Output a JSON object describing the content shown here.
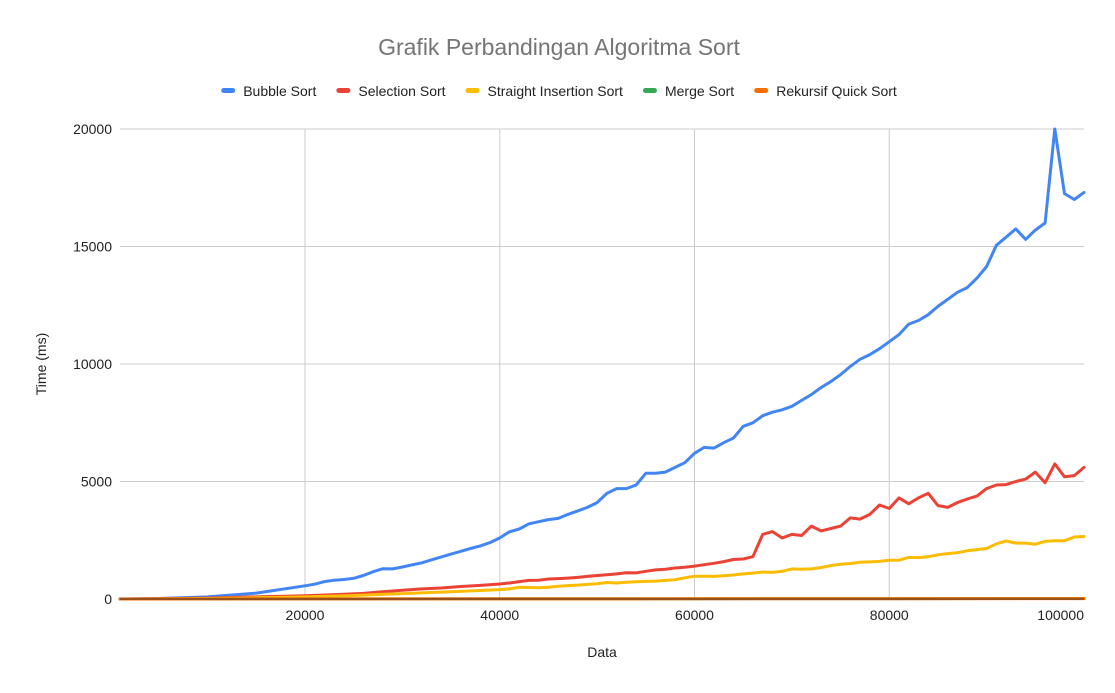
{
  "chart_data": {
    "type": "line",
    "title": "Grafik Perbandingan Algoritma Sort",
    "xlabel": "Data",
    "ylabel": "Time (ms)",
    "xlim": [
      1000,
      100000
    ],
    "ylim": [
      0,
      20000
    ],
    "xticks": [
      20000,
      40000,
      60000,
      80000,
      100000
    ],
    "yticks": [
      0,
      5000,
      10000,
      15000,
      20000
    ],
    "grid": true,
    "legend_position": "top",
    "series": [
      {
        "name": "Bubble Sort",
        "color": "#4285f4",
        "points": [
          [
            1000,
            5
          ],
          [
            5000,
            20
          ],
          [
            10000,
            90
          ],
          [
            15000,
            250
          ],
          [
            20000,
            560
          ],
          [
            21000,
            630
          ],
          [
            22000,
            740
          ],
          [
            23000,
            800
          ],
          [
            24000,
            830
          ],
          [
            25000,
            880
          ],
          [
            26000,
            1000
          ],
          [
            27000,
            1160
          ],
          [
            28000,
            1290
          ],
          [
            29000,
            1280
          ],
          [
            30000,
            1360
          ],
          [
            31000,
            1450
          ],
          [
            32000,
            1540
          ],
          [
            33000,
            1670
          ],
          [
            34000,
            1790
          ],
          [
            35000,
            1910
          ],
          [
            36000,
            2030
          ],
          [
            37000,
            2150
          ],
          [
            38000,
            2260
          ],
          [
            39000,
            2400
          ],
          [
            40000,
            2600
          ],
          [
            41000,
            2860
          ],
          [
            42000,
            2980
          ],
          [
            43000,
            3200
          ],
          [
            44000,
            3290
          ],
          [
            45000,
            3380
          ],
          [
            46000,
            3430
          ],
          [
            47000,
            3600
          ],
          [
            48000,
            3750
          ],
          [
            49000,
            3900
          ],
          [
            50000,
            4100
          ],
          [
            51000,
            4500
          ],
          [
            52000,
            4700
          ],
          [
            53000,
            4700
          ],
          [
            54000,
            4850
          ],
          [
            55000,
            5350
          ],
          [
            56000,
            5350
          ],
          [
            57000,
            5400
          ],
          [
            58000,
            5600
          ],
          [
            59000,
            5800
          ],
          [
            60000,
            6200
          ],
          [
            61000,
            6450
          ],
          [
            62000,
            6420
          ],
          [
            63000,
            6650
          ],
          [
            64000,
            6850
          ],
          [
            65000,
            7350
          ],
          [
            66000,
            7500
          ],
          [
            67000,
            7800
          ],
          [
            68000,
            7950
          ],
          [
            69000,
            8050
          ],
          [
            70000,
            8200
          ],
          [
            71000,
            8450
          ],
          [
            72000,
            8700
          ],
          [
            73000,
            9000
          ],
          [
            74000,
            9250
          ],
          [
            75000,
            9550
          ],
          [
            76000,
            9900
          ],
          [
            77000,
            10200
          ],
          [
            78000,
            10400
          ],
          [
            79000,
            10650
          ],
          [
            80000,
            10950
          ],
          [
            81000,
            11250
          ],
          [
            82000,
            11700
          ],
          [
            83000,
            11850
          ],
          [
            84000,
            12100
          ],
          [
            85000,
            12450
          ],
          [
            86000,
            12750
          ],
          [
            87000,
            13050
          ],
          [
            88000,
            13250
          ],
          [
            89000,
            13650
          ],
          [
            90000,
            14150
          ],
          [
            91000,
            15050
          ],
          [
            92000,
            15400
          ],
          [
            93000,
            15750
          ],
          [
            94000,
            15300
          ],
          [
            95000,
            15700
          ],
          [
            96000,
            16000
          ],
          [
            97000,
            20000
          ],
          [
            98000,
            17250
          ],
          [
            99000,
            17000
          ],
          [
            100000,
            17300
          ]
        ]
      },
      {
        "name": "Selection Sort",
        "color": "#ea4335",
        "points": [
          [
            1000,
            2
          ],
          [
            5000,
            10
          ],
          [
            10000,
            40
          ],
          [
            15000,
            90
          ],
          [
            20000,
            140
          ],
          [
            22000,
            170
          ],
          [
            24000,
            200
          ],
          [
            26000,
            240
          ],
          [
            28000,
            310
          ],
          [
            30000,
            370
          ],
          [
            32000,
            430
          ],
          [
            34000,
            470
          ],
          [
            36000,
            530
          ],
          [
            38000,
            580
          ],
          [
            40000,
            640
          ],
          [
            41000,
            680
          ],
          [
            42000,
            740
          ],
          [
            43000,
            790
          ],
          [
            44000,
            800
          ],
          [
            45000,
            850
          ],
          [
            46000,
            870
          ],
          [
            47000,
            890
          ],
          [
            48000,
            920
          ],
          [
            49000,
            960
          ],
          [
            50000,
            1000
          ],
          [
            51000,
            1030
          ],
          [
            52000,
            1070
          ],
          [
            53000,
            1120
          ],
          [
            54000,
            1110
          ],
          [
            55000,
            1180
          ],
          [
            56000,
            1240
          ],
          [
            57000,
            1270
          ],
          [
            58000,
            1320
          ],
          [
            59000,
            1350
          ],
          [
            60000,
            1400
          ],
          [
            61000,
            1460
          ],
          [
            62000,
            1520
          ],
          [
            63000,
            1590
          ],
          [
            64000,
            1680
          ],
          [
            65000,
            1700
          ],
          [
            66000,
            1800
          ],
          [
            67000,
            2750
          ],
          [
            68000,
            2870
          ],
          [
            69000,
            2600
          ],
          [
            70000,
            2750
          ],
          [
            71000,
            2700
          ],
          [
            72000,
            3100
          ],
          [
            73000,
            2900
          ],
          [
            74000,
            3000
          ],
          [
            75000,
            3100
          ],
          [
            76000,
            3450
          ],
          [
            77000,
            3400
          ],
          [
            78000,
            3600
          ],
          [
            79000,
            4000
          ],
          [
            80000,
            3850
          ],
          [
            81000,
            4300
          ],
          [
            82000,
            4050
          ],
          [
            83000,
            4300
          ],
          [
            84000,
            4500
          ],
          [
            85000,
            3980
          ],
          [
            86000,
            3900
          ],
          [
            87000,
            4100
          ],
          [
            88000,
            4250
          ],
          [
            89000,
            4380
          ],
          [
            90000,
            4700
          ],
          [
            91000,
            4850
          ],
          [
            92000,
            4870
          ],
          [
            93000,
            5000
          ],
          [
            94000,
            5100
          ],
          [
            95000,
            5400
          ],
          [
            96000,
            4950
          ],
          [
            97000,
            5750
          ],
          [
            98000,
            5200
          ],
          [
            99000,
            5250
          ],
          [
            100000,
            5600
          ]
        ]
      },
      {
        "name": "Straight Insertion Sort",
        "color": "#fbbc04",
        "points": [
          [
            1000,
            1
          ],
          [
            5000,
            5
          ],
          [
            10000,
            20
          ],
          [
            15000,
            50
          ],
          [
            20000,
            90
          ],
          [
            25000,
            150
          ],
          [
            30000,
            230
          ],
          [
            35000,
            310
          ],
          [
            40000,
            400
          ],
          [
            41000,
            430
          ],
          [
            42000,
            500
          ],
          [
            43000,
            490
          ],
          [
            44000,
            480
          ],
          [
            45000,
            500
          ],
          [
            46000,
            540
          ],
          [
            47000,
            570
          ],
          [
            48000,
            590
          ],
          [
            49000,
            620
          ],
          [
            50000,
            650
          ],
          [
            51000,
            700
          ],
          [
            52000,
            680
          ],
          [
            53000,
            710
          ],
          [
            54000,
            730
          ],
          [
            55000,
            750
          ],
          [
            56000,
            760
          ],
          [
            57000,
            790
          ],
          [
            58000,
            820
          ],
          [
            59000,
            900
          ],
          [
            60000,
            970
          ],
          [
            61000,
            970
          ],
          [
            62000,
            960
          ],
          [
            63000,
            990
          ],
          [
            64000,
            1020
          ],
          [
            65000,
            1070
          ],
          [
            66000,
            1100
          ],
          [
            67000,
            1150
          ],
          [
            68000,
            1130
          ],
          [
            69000,
            1180
          ],
          [
            70000,
            1280
          ],
          [
            71000,
            1270
          ],
          [
            72000,
            1280
          ],
          [
            73000,
            1340
          ],
          [
            74000,
            1420
          ],
          [
            75000,
            1480
          ],
          [
            76000,
            1510
          ],
          [
            77000,
            1560
          ],
          [
            78000,
            1580
          ],
          [
            79000,
            1600
          ],
          [
            80000,
            1650
          ],
          [
            81000,
            1650
          ],
          [
            82000,
            1770
          ],
          [
            83000,
            1760
          ],
          [
            84000,
            1800
          ],
          [
            85000,
            1880
          ],
          [
            86000,
            1930
          ],
          [
            87000,
            1970
          ],
          [
            88000,
            2050
          ],
          [
            89000,
            2100
          ],
          [
            90000,
            2150
          ],
          [
            91000,
            2350
          ],
          [
            92000,
            2470
          ],
          [
            93000,
            2380
          ],
          [
            94000,
            2380
          ],
          [
            95000,
            2330
          ],
          [
            96000,
            2450
          ],
          [
            97000,
            2480
          ],
          [
            98000,
            2480
          ],
          [
            99000,
            2640
          ],
          [
            100000,
            2660
          ]
        ]
      },
      {
        "name": "Merge Sort",
        "color": "#34a853",
        "points": [
          [
            1000,
            0
          ],
          [
            20000,
            4
          ],
          [
            40000,
            8
          ],
          [
            60000,
            12
          ],
          [
            80000,
            16
          ],
          [
            100000,
            20
          ]
        ]
      },
      {
        "name": "Rekursif Quick Sort",
        "color": "#ff6d01",
        "points": [
          [
            1000,
            0
          ],
          [
            20000,
            3
          ],
          [
            40000,
            6
          ],
          [
            60000,
            9
          ],
          [
            80000,
            12
          ],
          [
            100000,
            15
          ]
        ]
      }
    ]
  }
}
